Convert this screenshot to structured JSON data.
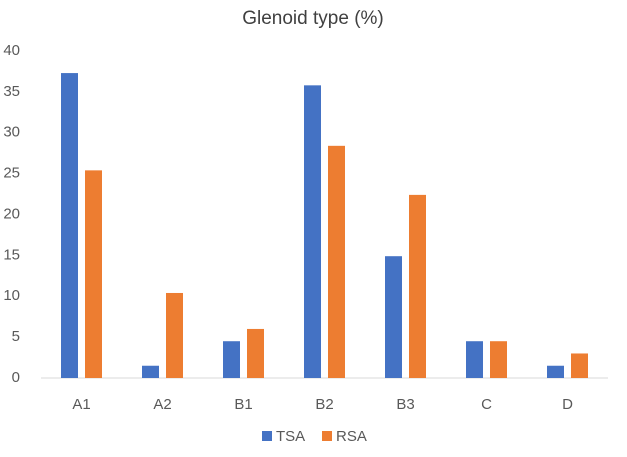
{
  "chart_data": {
    "type": "bar",
    "title": "Glenoid type (%)",
    "categories": [
      "A1",
      "A2",
      "B1",
      "B2",
      "B3",
      "C",
      "D"
    ],
    "series": [
      {
        "name": "TSA",
        "color": "#4472c4",
        "values": [
          37.3,
          1.5,
          4.5,
          35.8,
          14.9,
          4.5,
          1.5
        ]
      },
      {
        "name": "RSA",
        "color": "#ed7d31",
        "values": [
          25.4,
          10.4,
          6,
          28.4,
          22.4,
          4.5,
          3
        ]
      }
    ],
    "ylim": [
      0,
      40
    ],
    "yticks": [
      0,
      5,
      10,
      15,
      20,
      25,
      30,
      35,
      40
    ],
    "grid": false,
    "legend": "bottom"
  }
}
